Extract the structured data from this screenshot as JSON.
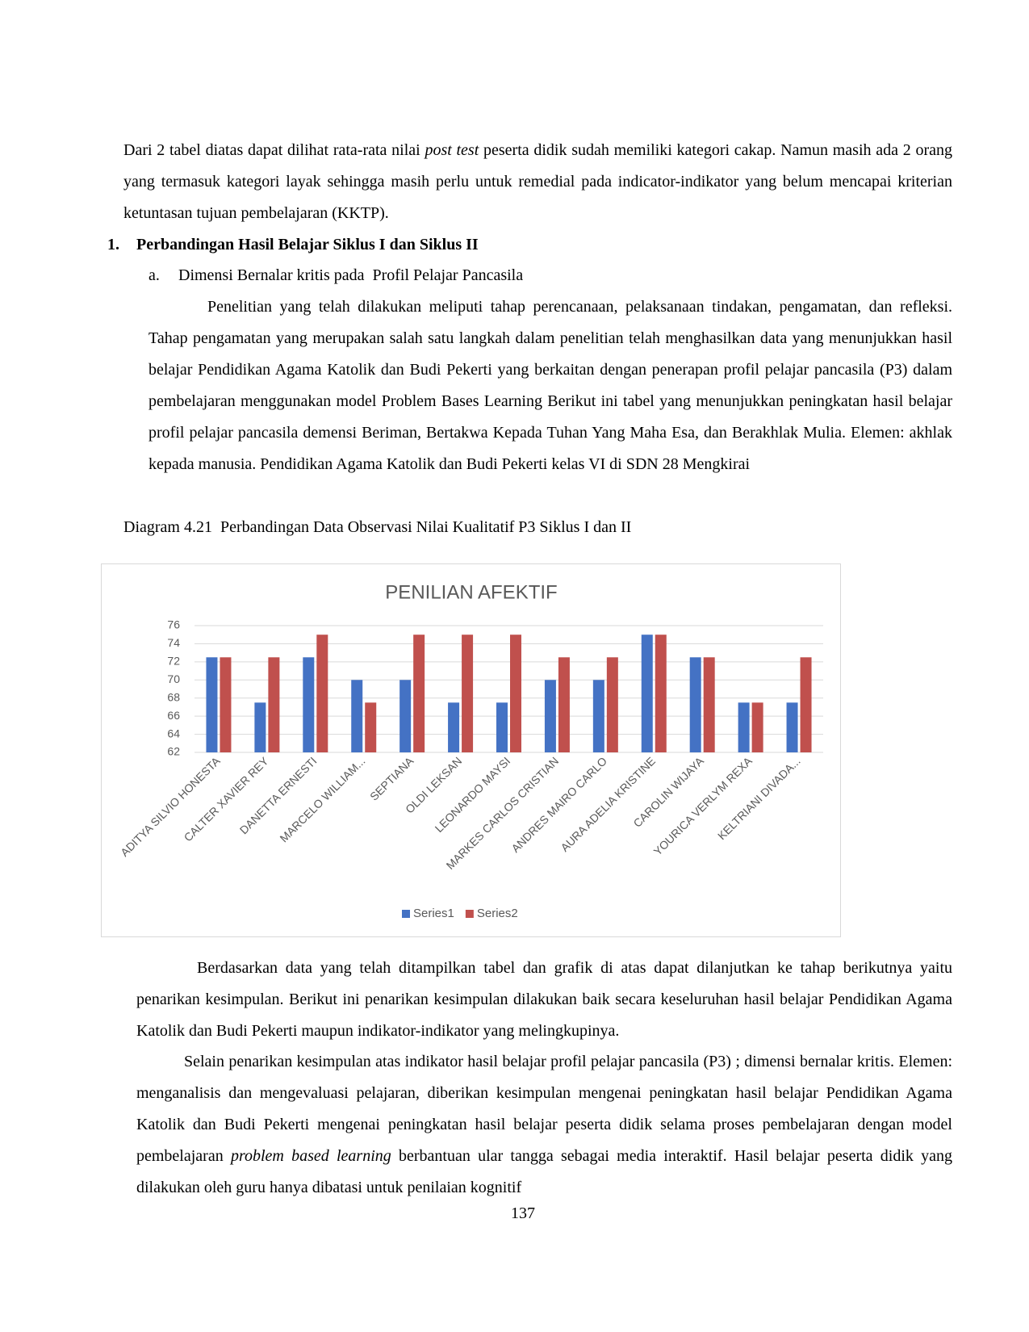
{
  "document": {
    "paragraph_1": [
      "Dari 2 tabel diatas dapat dilihat rata-rata nilai ",
      "post test",
      " peserta didik sudah memiliki kategori cakap. Namun masih ada 2 orang yang termasuk kategori layak sehingga masih perlu untuk remedial pada indicator-indikator yang belum mencapai kriterian ketuntasan tujuan pembelajaran (KKTP)."
    ],
    "heading": {
      "number": "1.",
      "text": "Perbandingan Hasil Belajar Siklus I dan Siklus II"
    },
    "subheading": {
      "number": "a.",
      "text": "Dimensi Bernalar kritis pada  Profil Pelajar Pancasila"
    },
    "paragraph_2": "Penelitian yang telah dilakukan meliputi tahap perencanaan, pelaksanaan tindakan, pengamatan, dan refleksi. Tahap pengamatan yang merupakan salah satu langkah dalam penelitian telah menghasilkan data yang menunjukkan hasil belajar Pendidikan Agama Katolik dan Budi Pekerti yang berkaitan dengan penerapan profil pelajar pancasila (P3) dalam pembelajaran menggunakan model Problem Bases Learning Berikut ini tabel yang menunjukkan peningkatan hasil belajar profil pelajar pancasila demensi Beriman, Bertakwa Kepada Tuhan Yang Maha Esa, dan Berakhlak Mulia. Elemen: akhlak kepada manusia. Pendidikan Agama Katolik dan Budi Pekerti kelas VI di SDN 28 Mengkirai",
    "caption": "Diagram 4.21  Perbandingan Data Observasi Nilai Kualitatif P3 Siklus I dan II",
    "paragraph_3": "Berdasarkan data yang telah ditampilkan tabel dan grafik di atas dapat dilanjutkan ke tahap berikutnya yaitu penarikan kesimpulan. Berikut ini penarikan kesimpulan dilakukan baik secara keseluruhan hasil belajar Pendidikan Agama Katolik dan Budi Pekerti maupun indikator-indikator yang melingkupinya.",
    "paragraph_4": [
      "Selain penarikan kesimpulan atas indikator hasil belajar profil pelajar pancasila (P3) ; dimensi bernalar kritis. Elemen: menganalisis dan mengevaluasi pelajaran, diberikan kesimpulan mengenai peningkatan hasil belajar Pendidikan Agama Katolik dan Budi Pekerti mengenai peningkatan hasil belajar peserta didik selama proses pembelajaran dengan model pembelajaran ",
      "problem based learning",
      " berbantuan ular tangga sebagai media interaktif. Hasil belajar peserta didik yang dilakukan oleh guru hanya dibatasi untuk penilaian kognitif"
    ],
    "page_number": "137"
  },
  "chart_data": {
    "type": "bar",
    "title": "PENILIAN AFEKTIF",
    "categories": [
      "ADITYA SILVIO HONESTA",
      "CALTER XAVIER REY",
      "DANETTA ERNESTI",
      "MARCELO WILLIAM...",
      "SEPTIANA",
      "OLDI LEKSAN",
      "LEONARDO MAYSI",
      "MARKES CARLOS CRISTIAN",
      "ANDRES MAIRO CARLO",
      "AURA ADELIA KRISTINE",
      "CAROLIN WIJAYA",
      "YOURICA VERLYM REXA",
      "KELTRIANI DIVADA..."
    ],
    "series": [
      {
        "name": "Series1",
        "color": "#4472c4",
        "values": [
          72.5,
          67.5,
          72.5,
          70,
          70,
          67.5,
          67.5,
          70,
          70,
          75,
          72.5,
          67.5,
          67.5
        ]
      },
      {
        "name": "Series2",
        "color": "#c0504d",
        "values": [
          72.5,
          72.5,
          75,
          67.5,
          75,
          75,
          75,
          72.5,
          72.5,
          75,
          72.5,
          67.5,
          72.5
        ]
      }
    ],
    "ylim": [
      62,
      76
    ],
    "yticks": [
      62,
      64,
      66,
      68,
      70,
      72,
      74,
      76
    ],
    "grid": true,
    "legend": "bottom"
  }
}
